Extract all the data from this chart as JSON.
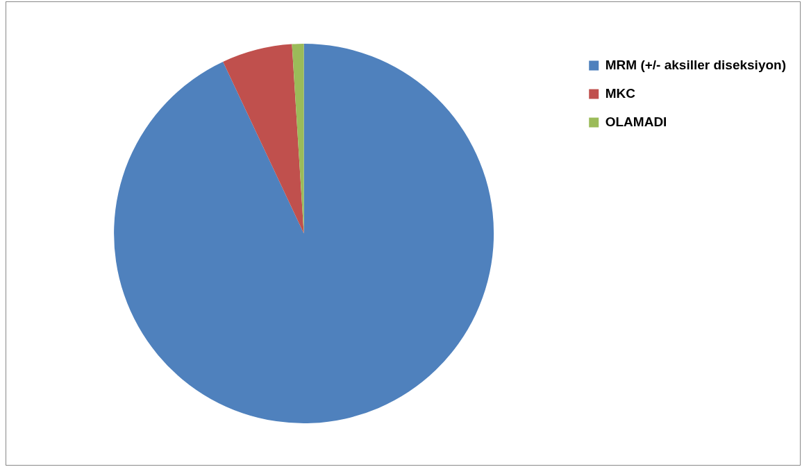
{
  "chart_data": {
    "type": "pie",
    "categories": [
      "MRM (+/- aksiller diseksiyon)",
      "MKC",
      "OLAMADI"
    ],
    "values": [
      93,
      6,
      1
    ],
    "colors": [
      "#4f81bd",
      "#c0504d",
      "#9bbb59"
    ],
    "legend": "top right"
  }
}
